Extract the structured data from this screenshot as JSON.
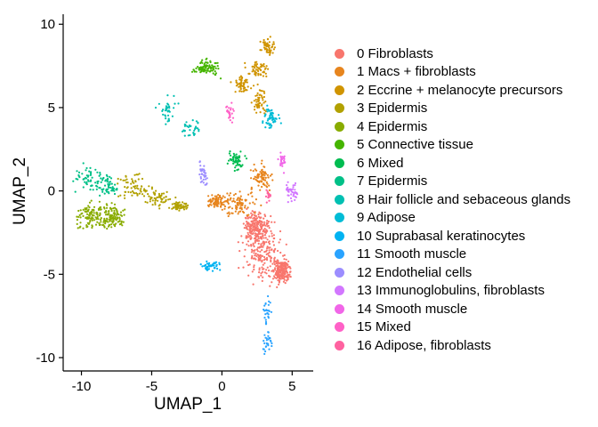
{
  "chart_data": {
    "type": "scatter",
    "xlabel": "UMAP_1",
    "ylabel": "UMAP_2",
    "xlim": [
      -11.3,
      6.5
    ],
    "ylim": [
      -10.8,
      10.6
    ],
    "xticks": [
      -10,
      -5,
      0,
      5
    ],
    "yticks": [
      -10,
      -5,
      0,
      5,
      10
    ],
    "xtick_labels": [
      "-10",
      "-5",
      "0",
      "5"
    ],
    "ytick_labels": [
      "-10",
      "-5",
      "0",
      "5",
      "10"
    ],
    "grid": false,
    "legend_position": "right",
    "series": [
      {
        "name": "0 Fibroblasts",
        "color": "#F8766D",
        "regions": [
          [
            3.0,
            -3.8,
            1.6,
            1.8
          ],
          [
            2.4,
            -2.2,
            1.0,
            1.0
          ],
          [
            4.3,
            -4.8,
            0.6,
            0.8
          ]
        ],
        "count": 600
      },
      {
        "name": "1 Macs + fibroblasts",
        "color": "#E7851E",
        "regions": [
          [
            1.2,
            -0.8,
            1.4,
            0.9
          ],
          [
            2.8,
            0.8,
            0.9,
            0.8
          ],
          [
            -0.3,
            -0.6,
            0.7,
            0.4
          ]
        ],
        "count": 260
      },
      {
        "name": "2 Eccrine + melanocyte precursors",
        "color": "#D09400",
        "regions": [
          [
            2.6,
            7.3,
            0.9,
            0.5
          ],
          [
            3.2,
            8.6,
            0.6,
            0.6
          ],
          [
            1.4,
            6.4,
            0.7,
            0.6
          ],
          [
            2.7,
            5.4,
            0.5,
            0.8
          ]
        ],
        "count": 220
      },
      {
        "name": "3 Epidermis",
        "color": "#B2A100",
        "regions": [
          [
            -6.4,
            0.3,
            1.5,
            1.0
          ],
          [
            -4.6,
            -0.4,
            1.1,
            0.6
          ],
          [
            -3.0,
            -0.9,
            0.8,
            0.3
          ]
        ],
        "count": 180
      },
      {
        "name": "4 Epidermis",
        "color": "#89AC00",
        "regions": [
          [
            -9.3,
            -1.5,
            1.3,
            0.9
          ],
          [
            -7.8,
            -1.5,
            1.0,
            0.8
          ]
        ],
        "count": 220
      },
      {
        "name": "5 Connective tissue",
        "color": "#45B500",
        "regions": [
          [
            -1.1,
            7.4,
            1.0,
            0.5
          ]
        ],
        "count": 90
      },
      {
        "name": "6 Mixed",
        "color": "#00BC51",
        "regions": [
          [
            1.0,
            1.8,
            0.6,
            0.6
          ]
        ],
        "count": 60
      },
      {
        "name": "7 Epidermis",
        "color": "#00C087",
        "regions": [
          [
            -9.5,
            0.8,
            1.1,
            0.9
          ],
          [
            -8.1,
            0.3,
            0.8,
            0.7
          ]
        ],
        "count": 110
      },
      {
        "name": "8 Hair follicle and sebaceous glands",
        "color": "#00C0B2",
        "regions": [
          [
            -3.9,
            4.8,
            0.7,
            0.8
          ],
          [
            -2.2,
            3.8,
            0.8,
            0.6
          ]
        ],
        "count": 70
      },
      {
        "name": "9 Adipose",
        "color": "#00BCD6",
        "regions": [
          [
            3.5,
            4.4,
            0.7,
            0.9
          ]
        ],
        "count": 55
      },
      {
        "name": "10 Suprabasal keratinocytes",
        "color": "#00B3F2",
        "regions": [
          [
            -0.8,
            -4.5,
            0.8,
            0.4
          ]
        ],
        "count": 45
      },
      {
        "name": "11 Smooth muscle",
        "color": "#29A3FF",
        "regions": [
          [
            3.2,
            -7.2,
            0.3,
            0.9
          ],
          [
            3.2,
            -9.0,
            0.35,
            0.7
          ]
        ],
        "count": 55
      },
      {
        "name": "12 Endothelial cells",
        "color": "#9C8DFF",
        "regions": [
          [
            -1.3,
            1.0,
            0.35,
            0.9
          ]
        ],
        "count": 35
      },
      {
        "name": "13 Immunoglobulins, fibroblasts",
        "color": "#D277FF",
        "regions": [
          [
            5.0,
            0.0,
            0.6,
            0.7
          ]
        ],
        "count": 40
      },
      {
        "name": "14 Smooth muscle",
        "color": "#F166E8",
        "regions": [
          [
            4.3,
            1.8,
            0.3,
            0.6
          ]
        ],
        "count": 25
      },
      {
        "name": "15 Mixed",
        "color": "#FF61C7",
        "regions": [
          [
            0.6,
            4.6,
            0.35,
            0.7
          ]
        ],
        "count": 25
      },
      {
        "name": "16 Adipose, fibroblasts",
        "color": "#FF62A0",
        "regions": [
          [
            3.3,
            -0.2,
            0.25,
            0.5
          ]
        ],
        "count": 15
      }
    ]
  }
}
